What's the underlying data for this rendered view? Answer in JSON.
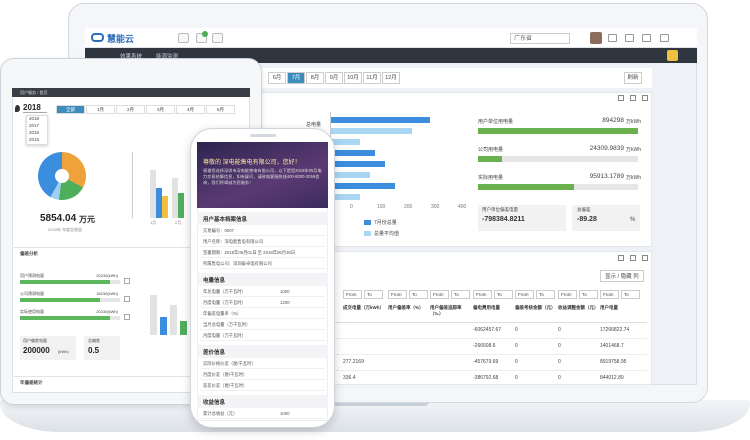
{
  "laptop": {
    "logo": "慧能云",
    "region": "广东省",
    "nav": [
      "效果系统",
      "能源监测"
    ],
    "months": [
      "6月",
      "7月",
      "8月",
      "9月",
      "10月",
      "11月",
      "12月"
    ],
    "refresh": "刷新",
    "chart": {
      "category": "总电量",
      "ticks": [
        "0",
        "100",
        "200",
        "300",
        "400"
      ],
      "legend": [
        "7月份总量",
        "总量平均值"
      ]
    },
    "metrics": [
      {
        "label": "用户单位用电量",
        "value": "894298",
        "unit": "万kWh"
      },
      {
        "label": "公司用电量",
        "value": "24309.9839",
        "unit": "万kWh"
      },
      {
        "label": "实际用电量",
        "value": "95913.1789",
        "unit": "万kWh"
      }
    ],
    "deviation": {
      "label": "用户单位偏差电量",
      "value": "-798384.8211"
    },
    "total": {
      "label": "总偏差",
      "value": "-89.28",
      "unit": "%"
    },
    "toggle": "显示 / 隐藏 列",
    "filter": {
      "from": "From",
      "to": "To"
    },
    "table": {
      "headers": [
        "成交电量（万kWh）",
        "用户偏差率（%）",
        "用户偏差追踪率（‰）",
        "偏电费用电量",
        "偏差考核金额（元）",
        "收益调整金额（元）",
        "用户电量"
      ],
      "rows": [
        [
          null,
          null,
          null,
          "-6062457.67",
          "0",
          "0",
          "17266822.74"
        ],
        [
          null,
          null,
          null,
          "-266608.6",
          "0",
          "0",
          "1401468.7"
        ],
        [
          "277.2169",
          null,
          null,
          "-457679.69",
          "0",
          "0",
          "8919758.95"
        ],
        [
          "336.4",
          null,
          null,
          "-386792.68",
          "0",
          "0",
          "844012.89"
        ]
      ]
    }
  },
  "tablet": {
    "breadcrumb": "用户服务 / 首页",
    "year": "2018",
    "years": [
      "2018",
      "2017",
      "2016",
      "2015"
    ],
    "months": [
      "全部",
      "1月",
      "2月",
      "3月",
      "4月",
      "5月"
    ],
    "income": {
      "value": "5854.04",
      "unit": "万元",
      "caption": "2018年 年度总收益"
    },
    "bar_axis": [
      "1月",
      "2月"
    ],
    "section": "偏差分析",
    "progress": [
      {
        "label": "用户预测电量",
        "value": "20230(kWh)"
      },
      {
        "label": "公司预测电量",
        "value": "18230(kWh)"
      },
      {
        "label": "实际使用电量",
        "value": "20230(kWh)"
      }
    ],
    "boxes": [
      {
        "label": "用户偏差电量",
        "value": "200000",
        "unit": "(kWh)"
      },
      {
        "label": "总偏差",
        "value": "0.5"
      }
    ],
    "footer": "年偏差统计"
  },
  "phone": {
    "greeting": "尊敬的 深电能售电有限公司，您好！",
    "message": "感谢您选择深圳市深电能售电有限公司，以下是您2018年05月电力交易结算信息，如有疑问，请致电客服热线400-8000-2058咨询，我们将竭诚为您服务！",
    "sections": [
      {
        "title": "用户基本档案信息",
        "rows": [
          {
            "label": "交易编号：0007"
          },
          {
            "label": "用户名称：深电能售电有限公司"
          },
          {
            "label": "签署期限：2018年05月01日 至 2018年06月30日"
          },
          {
            "label": "所属售电公司：深圳泰卓电有限公司"
          }
        ]
      },
      {
        "title": "电量信息",
        "rows": [
          {
            "label": "年总电量（万千瓦时）",
            "value": "1000"
          },
          {
            "label": "月度电量（万千瓦时）",
            "value": "1200"
          },
          {
            "label": "年偏差电量率（%）"
          },
          {
            "label": "当月总电量（万千瓦时）"
          },
          {
            "label": "月度电量（万千瓦时）"
          }
        ]
      },
      {
        "title": "差价信息",
        "rows": [
          {
            "label": "实际价格价差（厘/千瓦时）"
          },
          {
            "label": "月度价差（厘/千瓦时）"
          },
          {
            "label": "差差价差（厘/千瓦时）"
          }
        ]
      },
      {
        "title": "收益信息",
        "rows": [
          {
            "label": "累计总收益（元）",
            "value": "1000"
          }
        ]
      }
    ]
  }
}
